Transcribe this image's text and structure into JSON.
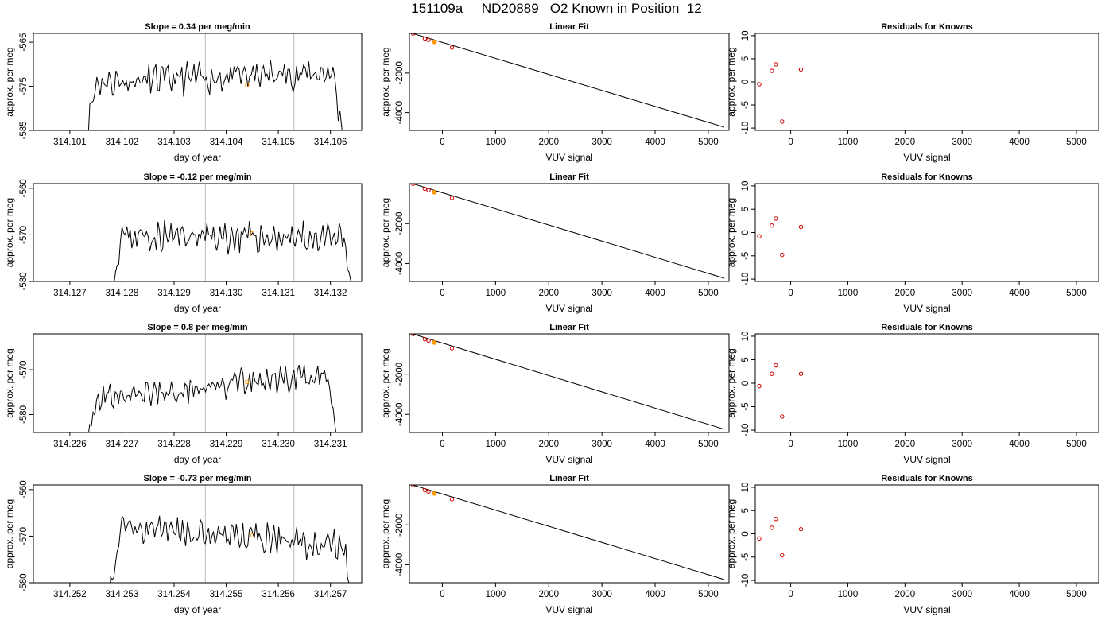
{
  "page_title": "151109a     ND20889   O2 Known in Position  12",
  "colors": {
    "line": "#000000",
    "marker_known": "#cc0000",
    "marker_highlight": "#ff9900",
    "vline": "#bbbbbb"
  },
  "chart_data": [
    {
      "type": "line",
      "title": "Slope =  0.34  per meg/min",
      "xlabel": "day of year",
      "ylabel": "approx. per meg",
      "xlim": [
        314.1003,
        314.1066
      ],
      "ylim": [
        -585,
        -563
      ],
      "xticks": [
        "314.101",
        "314.102",
        "314.103",
        "314.104",
        "314.105",
        "314.106"
      ],
      "yticks": [
        "-585",
        "-575",
        "-565"
      ],
      "vlines": [
        314.1036,
        314.1053
      ],
      "marker": {
        "x": 314.1044,
        "y": -574.7
      },
      "x_start": 314.10125,
      "x_end": 314.10625,
      "level": -573,
      "slope": 0.34,
      "noise": 2.6,
      "seed": 11
    },
    {
      "type": "scatter",
      "title": "Linear Fit",
      "xlabel": "VUV signal",
      "ylabel": "approx. per meg",
      "xlim": [
        -620,
        5390
      ],
      "ylim": [
        -4900,
        5
      ],
      "xticks": [
        "0",
        "1000",
        "2000",
        "3000",
        "4000",
        "5000"
      ],
      "yticks": [
        "-4000",
        "-2000"
      ],
      "points": [
        [
          -550,
          -4
        ],
        [
          -330,
          -255
        ],
        [
          -260,
          -325
        ],
        [
          -150,
          -425
        ],
        [
          180,
          -712
        ]
      ],
      "highlight": [
        [
          -150,
          -425
        ]
      ],
      "fit_line": [
        [
          -550,
          -4
        ],
        [
          5300,
          -4740
        ]
      ]
    },
    {
      "type": "scatter",
      "title": "Residuals for Knowns",
      "xlabel": "VUV signal",
      "ylabel": "approx. per meg",
      "xlim": [
        -620,
        5390
      ],
      "ylim": [
        -10.5,
        10.5
      ],
      "xticks": [
        "0",
        "1000",
        "2000",
        "3000",
        "4000",
        "5000"
      ],
      "yticks": [
        "-10",
        "-5",
        "0",
        "5",
        "10"
      ],
      "points": [
        [
          -550,
          -0.5
        ],
        [
          -330,
          2.4
        ],
        [
          -260,
          3.8
        ],
        [
          -150,
          -8.6
        ],
        [
          180,
          2.7
        ]
      ]
    },
    {
      "type": "line",
      "title": "Slope =  -0.12  per meg/min",
      "xlabel": "day of year",
      "ylabel": "approx. per meg",
      "xlim": [
        314.1263,
        314.1326
      ],
      "ylim": [
        -580,
        -559
      ],
      "xticks": [
        "314.127",
        "314.128",
        "314.129",
        "314.130",
        "314.131",
        "314.132"
      ],
      "yticks": [
        "-580",
        "-570",
        "-560"
      ],
      "vlines": [
        314.1296,
        314.1313
      ],
      "marker": {
        "x": 314.1305,
        "y": -569.7
      },
      "x_start": 314.12775,
      "x_end": 314.13245,
      "level": -570.5,
      "slope": -0.12,
      "noise": 2.4,
      "seed": 23
    },
    {
      "type": "scatter",
      "title": "Linear Fit",
      "xlabel": "VUV signal",
      "ylabel": "approx. per meg",
      "xlim": [
        -620,
        5390
      ],
      "ylim": [
        -4900,
        5
      ],
      "xticks": [
        "0",
        "1000",
        "2000",
        "3000",
        "4000",
        "5000"
      ],
      "yticks": [
        "-4000",
        "-2000"
      ],
      "points": [
        [
          -550,
          -4
        ],
        [
          -330,
          -255
        ],
        [
          -260,
          -325
        ],
        [
          -150,
          -425
        ],
        [
          180,
          -712
        ]
      ],
      "highlight": [
        [
          -150,
          -425
        ]
      ],
      "fit_line": [
        [
          -550,
          -4
        ],
        [
          5300,
          -4740
        ]
      ]
    },
    {
      "type": "scatter",
      "title": "Residuals for Knowns",
      "xlabel": "VUV signal",
      "ylabel": "approx. per meg",
      "xlim": [
        -620,
        5390
      ],
      "ylim": [
        -10.5,
        10.5
      ],
      "xticks": [
        "0",
        "1000",
        "2000",
        "3000",
        "4000",
        "5000"
      ],
      "yticks": [
        "-10",
        "-5",
        "0",
        "5",
        "10"
      ],
      "points": [
        [
          -550,
          -0.8
        ],
        [
          -330,
          1.5
        ],
        [
          -260,
          3.0
        ],
        [
          -150,
          -4.8
        ],
        [
          180,
          1.2
        ]
      ]
    },
    {
      "type": "line",
      "title": "Slope =  0.8  per meg/min",
      "xlabel": "day of year",
      "ylabel": "approx. per meg",
      "xlim": [
        314.2253,
        314.2316
      ],
      "ylim": [
        -584,
        -562
      ],
      "xticks": [
        "314.226",
        "314.227",
        "314.228",
        "314.229",
        "314.230",
        "314.231"
      ],
      "yticks": [
        "-580",
        "-570"
      ],
      "vlines": [
        314.2286,
        314.2303
      ],
      "marker": {
        "x": 314.2294,
        "y": -572.7
      },
      "x_start": 314.22625,
      "x_end": 314.23115,
      "level": -573.8,
      "slope": 0.8,
      "noise": 2.4,
      "seed": 37
    },
    {
      "type": "scatter",
      "title": "Linear Fit",
      "xlabel": "VUV signal",
      "ylabel": "approx. per meg",
      "xlim": [
        -620,
        5390
      ],
      "ylim": [
        -4900,
        5
      ],
      "xticks": [
        "0",
        "1000",
        "2000",
        "3000",
        "4000",
        "5000"
      ],
      "yticks": [
        "-4000",
        "-2000"
      ],
      "points": [
        [
          -550,
          -4
        ],
        [
          -330,
          -255
        ],
        [
          -260,
          -325
        ],
        [
          -150,
          -425
        ],
        [
          180,
          -712
        ]
      ],
      "highlight": [
        [
          -150,
          -425
        ]
      ],
      "fit_line": [
        [
          -550,
          -4
        ],
        [
          5300,
          -4740
        ]
      ]
    },
    {
      "type": "scatter",
      "title": "Residuals for Knowns",
      "xlabel": "VUV signal",
      "ylabel": "approx. per meg",
      "xlim": [
        -620,
        5390
      ],
      "ylim": [
        -10.5,
        10.5
      ],
      "xticks": [
        "0",
        "1000",
        "2000",
        "3000",
        "4000",
        "5000"
      ],
      "yticks": [
        "-10",
        "-5",
        "0",
        "5",
        "10"
      ],
      "points": [
        [
          -550,
          -0.6
        ],
        [
          -330,
          2.0
        ],
        [
          -260,
          3.8
        ],
        [
          -150,
          -7.1
        ],
        [
          180,
          2.0
        ]
      ]
    },
    {
      "type": "line",
      "title": "Slope =  -0.73  per meg/min",
      "xlabel": "day of year",
      "ylabel": "approx. per meg",
      "xlim": [
        314.2513,
        314.2576
      ],
      "ylim": [
        -580,
        -559
      ],
      "xticks": [
        "314.252",
        "314.253",
        "314.254",
        "314.255",
        "314.256",
        "314.257"
      ],
      "yticks": [
        "-580",
        "-570",
        "-560"
      ],
      "vlines": [
        314.2546,
        314.2563
      ],
      "marker": {
        "x": 314.2555,
        "y": -569.8
      },
      "x_start": 314.25275,
      "x_end": 314.25745,
      "level": -569.8,
      "slope": -0.73,
      "noise": 2.4,
      "seed": 51
    },
    {
      "type": "scatter",
      "title": "Linear Fit",
      "xlabel": "VUV signal",
      "ylabel": "approx. per meg",
      "xlim": [
        -620,
        5390
      ],
      "ylim": [
        -4900,
        5
      ],
      "xticks": [
        "0",
        "1000",
        "2000",
        "3000",
        "4000",
        "5000"
      ],
      "yticks": [
        "-4000",
        "-2000"
      ],
      "points": [
        [
          -550,
          -4
        ],
        [
          -330,
          -255
        ],
        [
          -260,
          -325
        ],
        [
          -150,
          -425
        ],
        [
          180,
          -712
        ]
      ],
      "highlight": [
        [
          -150,
          -425
        ]
      ],
      "fit_line": [
        [
          -550,
          -4
        ],
        [
          5300,
          -4740
        ]
      ]
    },
    {
      "type": "scatter",
      "title": "Residuals for Knowns",
      "xlabel": "VUV signal",
      "ylabel": "approx. per meg",
      "xlim": [
        -620,
        5390
      ],
      "ylim": [
        -10.5,
        10.5
      ],
      "xticks": [
        "0",
        "1000",
        "2000",
        "3000",
        "4000",
        "5000"
      ],
      "yticks": [
        "-10",
        "-5",
        "0",
        "5",
        "10"
      ],
      "points": [
        [
          -550,
          -1.0
        ],
        [
          -330,
          1.3
        ],
        [
          -260,
          3.2
        ],
        [
          -150,
          -4.6
        ],
        [
          180,
          1.0
        ]
      ]
    }
  ]
}
